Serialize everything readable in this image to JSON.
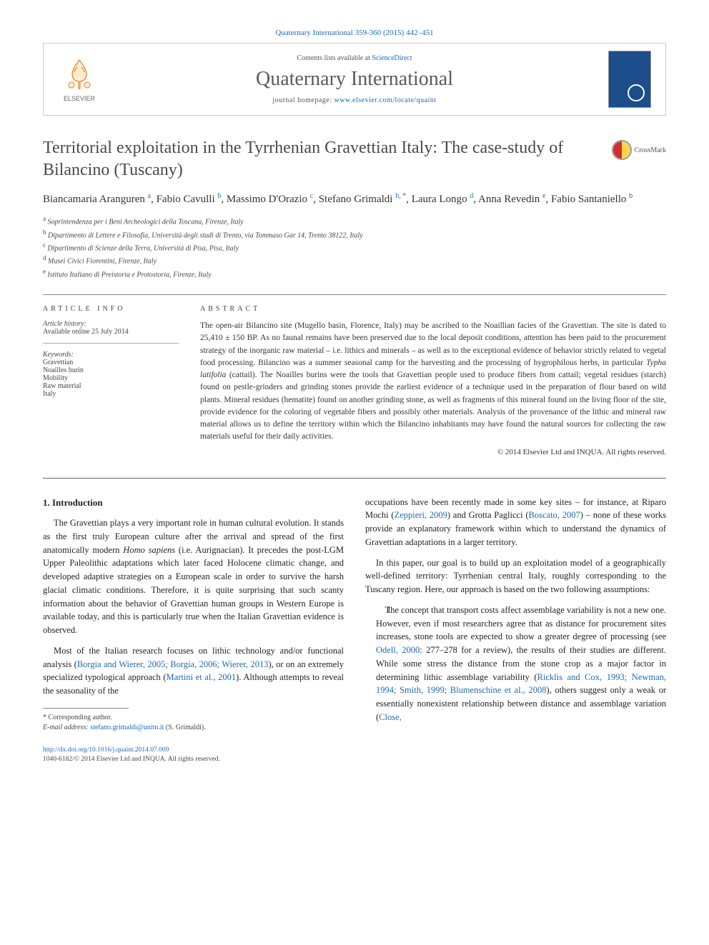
{
  "header": {
    "citation": "Quaternary International 359-360 (2015) 442–451",
    "contents_prefix": "Contents lists available at ",
    "contents_link": "ScienceDirect",
    "journal_name": "Quaternary International",
    "homepage_prefix": "journal homepage: ",
    "homepage_url": "www.elsevier.com/locate/quaint",
    "elsevier": "ELSEVIER"
  },
  "crossmark": "CrossMark",
  "title": "Territorial exploitation in the Tyrrhenian Gravettian Italy: The case-study of Bilancino (Tuscany)",
  "authors_html": "Biancamaria Aranguren <sup>a</sup>, Fabio Cavulli <sup>b</sup>, Massimo D'Orazio <sup>c</sup>, Stefano Grimaldi <sup>b, *</sup>, Laura Longo <sup>d</sup>, Anna Revedin <sup>e</sup>, Fabio Santaniello <sup>b</sup>",
  "affiliations": [
    {
      "sup": "a",
      "text": "Soprintendenza per i Beni Archeologici della Toscana, Firenze, Italy"
    },
    {
      "sup": "b",
      "text": "Dipartimento di Lettere e Filosofia, Università degli studi di Trento, via Tommaso Gar 14, Trento 38122, Italy"
    },
    {
      "sup": "c",
      "text": "Dipartimento di Scienze della Terra, Università di Pisa, Pisa, Italy"
    },
    {
      "sup": "d",
      "text": "Musei Civici Fiorentini, Firenze, Italy"
    },
    {
      "sup": "e",
      "text": "Istituto Italiano di Preistoria e Protostoria, Firenze, Italy"
    }
  ],
  "article_info": {
    "label": "ARTICLE INFO",
    "history_head": "Article history:",
    "history_line": "Available online 25 July 2014",
    "keywords_head": "Keywords:",
    "keywords": [
      "Gravettian",
      "Noailles burin",
      "Mobility",
      "Raw material",
      "Italy"
    ]
  },
  "abstract": {
    "label": "ABSTRACT",
    "text": "The open-air Bilancino site (Mugello basin, Florence, Italy) may be ascribed to the Noaillian facies of the Gravettian. The site is dated to 25,410 ± 150 BP. As no faunal remains have been preserved due to the local deposit conditions, attention has been paid to the procurement strategy of the inorganic raw material – i.e. lithics and minerals – as well as to the exceptional evidence of behavior strictly related to vegetal food processing. Bilancino was a summer seasonal camp for the harvesting and the processing of hygrophilous herbs, in particular Typha latifolia (cattail). The Noailles burins were the tools that Gravettian people used to produce fibers from cattail; vegetal residues (starch) found on pestle-grinders and grinding stones provide the earliest evidence of a technique used in the preparation of flour based on wild plants. Mineral residues (hematite) found on another grinding stone, as well as fragments of this mineral found on the living floor of the site, provide evidence for the coloring of vegetable fibers and possibly other materials. Analysis of the provenance of the lithic and mineral raw material allows us to define the territory within which the Bilancino inhabitants may have found the natural sources for collecting the raw materials useful for their daily activities.",
    "copyright": "© 2014 Elsevier Ltd and INQUA. All rights reserved."
  },
  "body": {
    "section_num": "1.",
    "section_title": "Introduction",
    "p1_a": "The Gravettian plays a very important role in human cultural evolution. It stands as the first truly European culture after the arrival and spread of the first anatomically modern ",
    "p1_em": "Homo sapiens",
    "p1_b": " (i.e. Aurignacian). It precedes the post-LGM Upper Paleolithic adaptations which later faced Holocene climatic change, and developed adaptive strategies on a European scale in order to survive the harsh glacial climatic conditions. Therefore, it is quite surprising that such scanty information about the behavior of Gravettian human groups in Western Europe is available today, and this is particularly true when the Italian Gravettian evidence is observed.",
    "p2_a": "Most of the Italian research focuses on lithic technology and/or functional analysis (",
    "p2_ref1": "Borgia and Wierer, 2005; Borgia, 2006; Wierer, 2013",
    "p2_b": "), or on an extremely specialized typological approach (",
    "p2_ref2": "Martini et al., 2001",
    "p2_c": "). Although attempts to reveal the seasonality of the",
    "p3_a": "occupations have been recently made in some key sites – for instance, at Riparo Mochi (",
    "p3_ref1": "Zeppieri, 2009",
    "p3_b": ") and Grotta Paglicci (",
    "p3_ref2": "Boscato, 2007",
    "p3_c": ") – none of these works provide an explanatory framework within which to understand the dynamics of Gravettian adaptations in a larger territory.",
    "p4": "In this paper, our goal is to build up an exploitation model of a geographically well-defined territory: Tyrrhenian central Italy, roughly corresponding to the Tuscany region. Here, our approach is based on the two following assumptions:",
    "li1_a": "The concept that transport costs affect assemblage variability is not a new one. However, even if most researchers agree that as distance for procurement sites increases, stone tools are expected to show a greater degree of processing (see ",
    "li1_ref1": "Odell, 2000",
    "li1_b": ": 277–278 for a review), the results of their studies are different. While some stress the distance from the stone crop as a major factor in determining lithic assemblage variability (",
    "li1_ref2": "Ricklis and Cox, 1993; Newman, 1994; Smith, 1999; Blumenschine et al., 2008",
    "li1_c": "), others suggest only a weak or essentially nonexistent relationship between distance and assemblage variation (",
    "li1_ref3": "Close,"
  },
  "footnote": {
    "corr": "* Corresponding author.",
    "email_label": "E-mail address: ",
    "email": "stefano.grimaldi@unitn.it",
    "email_suffix": " (S. Grimaldi)."
  },
  "footer": {
    "doi": "http://dx.doi.org/10.1016/j.quaint.2014.07.009",
    "issn_line": "1040-6182/© 2014 Elsevier Ltd and INQUA. All rights reserved."
  },
  "colors": {
    "link": "#2269b3",
    "text": "#333333",
    "rule": "#888888",
    "cover": "#1e4d8b"
  }
}
